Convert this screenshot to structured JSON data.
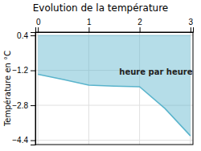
{
  "chart_data": {
    "type": "area",
    "title": "Evolution de la température",
    "y_label": "Température en °C",
    "annotations": [
      {
        "text": "heure par heure",
        "x": 1.6,
        "y": -1.3
      }
    ],
    "x": [
      0,
      0.5,
      1.0,
      1.5,
      2.0,
      2.5,
      3.0
    ],
    "series": [
      {
        "values": [
          -1.38,
          -1.62,
          -1.88,
          -1.92,
          -1.95,
          -2.95,
          -4.2
        ],
        "fill_to": 0.4,
        "color": "#5ab4cc"
      }
    ],
    "xlim": [
      -0.05,
      3.05
    ],
    "ylim": [
      -4.6,
      0.55
    ],
    "xticks": [
      0,
      1,
      2,
      3
    ],
    "yticks": [
      0.4,
      {
        "value": -1.2,
        "label": "−1.2"
      },
      {
        "value": -2.8,
        "label": "−2.8"
      },
      {
        "value": -4.4,
        "label": "−4.4"
      }
    ],
    "grid": true
  }
}
